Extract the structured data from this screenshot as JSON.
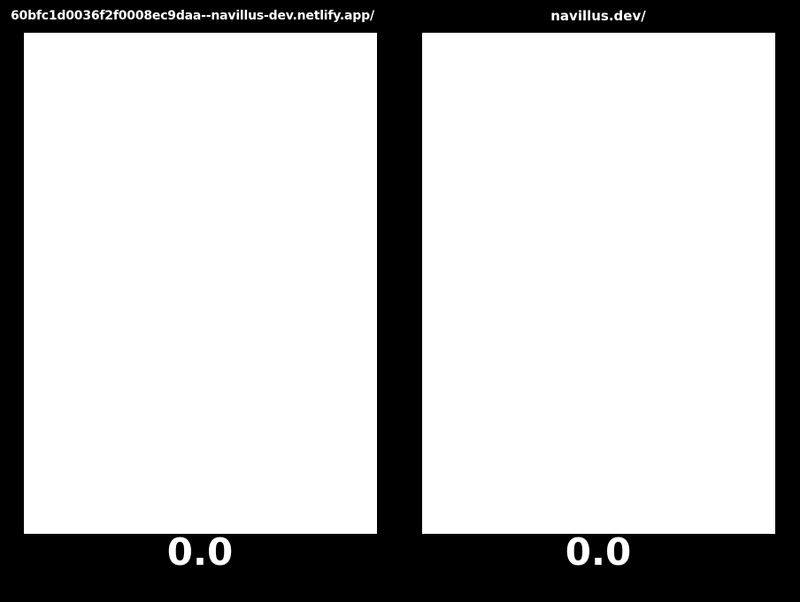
{
  "panels": [
    {
      "url": "60bfc1d0036f2f0008ec9daa--navillus-dev.netlify.app/",
      "score": "0.0"
    },
    {
      "url": "navillus.dev/",
      "score": "0.0"
    }
  ],
  "colors": {
    "background": "#000000",
    "frame": "#ffffff",
    "text": "#ffffff"
  }
}
